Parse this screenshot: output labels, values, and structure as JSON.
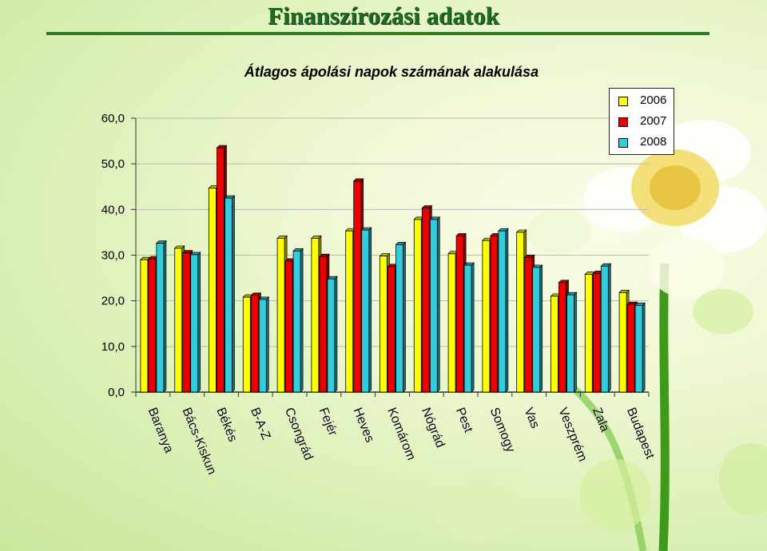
{
  "page": {
    "title": "Finanszírozási adatok"
  },
  "chart_data": {
    "type": "bar",
    "title": "Átlagos ápolási napok számának alakulása",
    "xlabel": "",
    "ylabel": "",
    "ylim": [
      0,
      60
    ],
    "ytick_labels": [
      "0,0",
      "10,0",
      "20,0",
      "30,0",
      "40,0",
      "50,0",
      "60,0"
    ],
    "grid": true,
    "legend_position": "top-right",
    "categories": [
      "Baranya",
      "Bács-Kiskun",
      "Békés",
      "B-A-Z",
      "Csongrád",
      "Fejér",
      "Heves",
      "Komárom",
      "Nógrád",
      "Pest",
      "Somogy",
      "Vas",
      "Veszprém",
      "Zala",
      "Budapest"
    ],
    "series": [
      {
        "name": "2006",
        "color": "#ffff00",
        "values": [
          29.0,
          31.5,
          44.7,
          20.8,
          33.7,
          33.7,
          35.3,
          29.8,
          37.8,
          30.3,
          33.2,
          35.0,
          21.0,
          25.8,
          21.8
        ]
      },
      {
        "name": "2007",
        "color": "#ee0000",
        "values": [
          29.2,
          30.5,
          53.5,
          21.2,
          28.7,
          29.7,
          46.2,
          27.5,
          40.3,
          34.2,
          34.2,
          29.5,
          24.0,
          26.0,
          19.2
        ]
      },
      {
        "name": "2008",
        "color": "#33ccdd",
        "values": [
          32.6,
          30.1,
          42.5,
          20.3,
          30.9,
          24.8,
          35.5,
          32.3,
          37.8,
          27.8,
          35.3,
          27.3,
          21.3,
          27.6,
          19.0
        ]
      }
    ]
  }
}
